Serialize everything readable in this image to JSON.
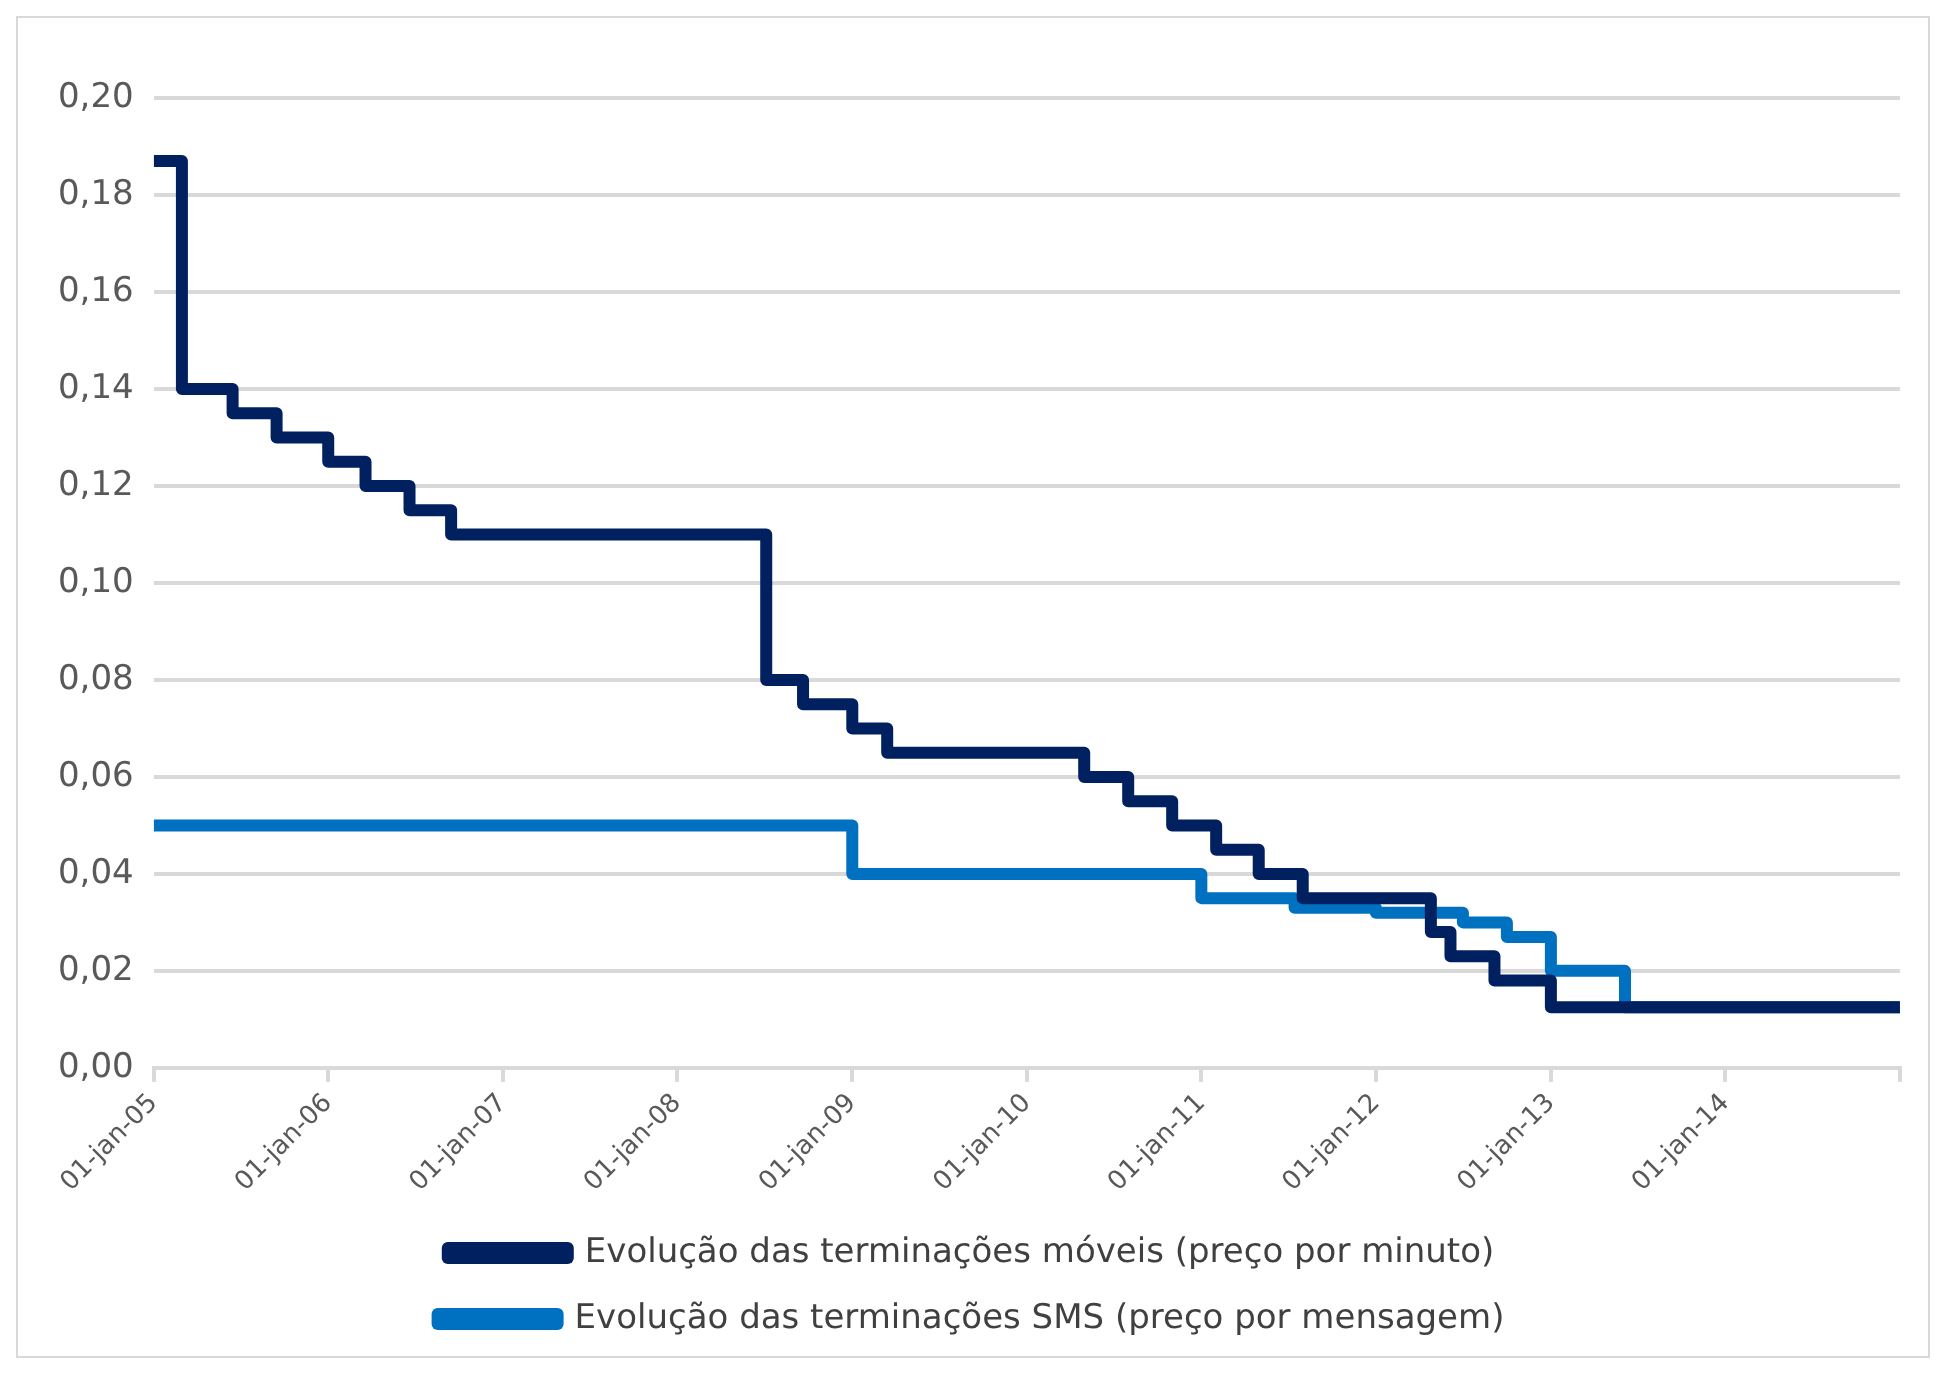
{
  "chart_data": {
    "type": "step",
    "x": [
      "2005-01-01",
      "2005-03-01",
      "2005-06-15",
      "2005-09-15",
      "2006-01-01",
      "2006-03-20",
      "2006-06-20",
      "2006-09-15",
      "2008-07-05",
      "2008-09-20",
      "2009-01-01",
      "2009-03-15",
      "2010-05-01",
      "2010-08-01",
      "2010-11-01",
      "2011-02-01",
      "2011-05-01",
      "2011-08-01",
      "2012-04-25",
      "2012-06-05",
      "2012-09-05",
      "2013-01-01",
      "2015-01-01"
    ],
    "series": [
      {
        "name": "Evolução das terminações móveis (preço por minuto)",
        "color": "#002060",
        "values": [
          0.187,
          0.14,
          0.135,
          0.13,
          0.125,
          0.12,
          0.115,
          0.11,
          0.08,
          0.075,
          0.07,
          0.065,
          0.06,
          0.055,
          0.05,
          0.045,
          0.04,
          0.035,
          0.028,
          0.023,
          0.018,
          0.0125,
          0.0125
        ]
      },
      {
        "name": "Evolução das terminações SMS (preço por mensagem)",
        "color": "#0070c0",
        "x": [
          "2005-01-01",
          "2009-01-01",
          "2011-01-01",
          "2011-07-15",
          "2012-01-01",
          "2012-07-01",
          "2012-10-01",
          "2013-01-01",
          "2013-06-05",
          "2015-01-01"
        ],
        "values": [
          0.05,
          0.04,
          0.035,
          0.033,
          0.032,
          0.03,
          0.027,
          0.02,
          0.0125,
          0.0125
        ]
      }
    ],
    "ylim": [
      0,
      0.2
    ],
    "yticks": [
      {
        "value": 0,
        "label": "0,00"
      },
      {
        "value": 0.02,
        "label": "0,02"
      },
      {
        "value": 0.04,
        "label": "0,04"
      },
      {
        "value": 0.06,
        "label": "0,06"
      },
      {
        "value": 0.08,
        "label": "0,08"
      },
      {
        "value": 0.1,
        "label": "0,10"
      },
      {
        "value": 0.12,
        "label": "0,12"
      },
      {
        "value": 0.14,
        "label": "0,14"
      },
      {
        "value": 0.16,
        "label": "0,16"
      },
      {
        "value": 0.18,
        "label": "0,18"
      },
      {
        "value": 0.2,
        "label": "0,20"
      }
    ],
    "xlim": [
      "2005-01-01",
      "2015-01-01"
    ],
    "xticks": [
      {
        "value": "2005-01-01",
        "label": "01-jan-05"
      },
      {
        "value": "2006-01-01",
        "label": "01-jan-06"
      },
      {
        "value": "2007-01-01",
        "label": "01-jan-07"
      },
      {
        "value": "2008-01-01",
        "label": "01-jan-08"
      },
      {
        "value": "2009-01-01",
        "label": "01-jan-09"
      },
      {
        "value": "2010-01-01",
        "label": "01-jan-10"
      },
      {
        "value": "2011-01-01",
        "label": "01-jan-11"
      },
      {
        "value": "2012-01-01",
        "label": "01-jan-12"
      },
      {
        "value": "2013-01-01",
        "label": "01-jan-13"
      },
      {
        "value": "2014-01-01",
        "label": "01-jan-14"
      },
      {
        "value": "2015-01-01",
        "label": null
      }
    ],
    "grid": "y",
    "legend": "bottom",
    "marker": "none",
    "line_style": "solid"
  }
}
